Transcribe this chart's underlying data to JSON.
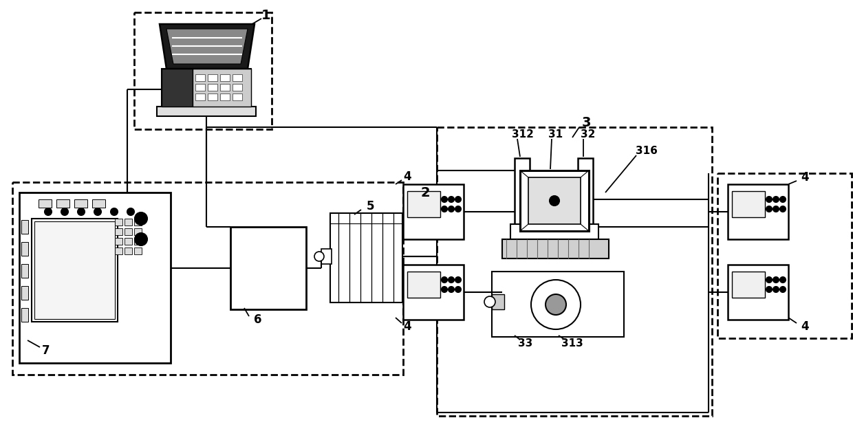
{
  "bg": "#ffffff",
  "lc": "#000000",
  "lw": 1.5,
  "lw2": 2.0
}
